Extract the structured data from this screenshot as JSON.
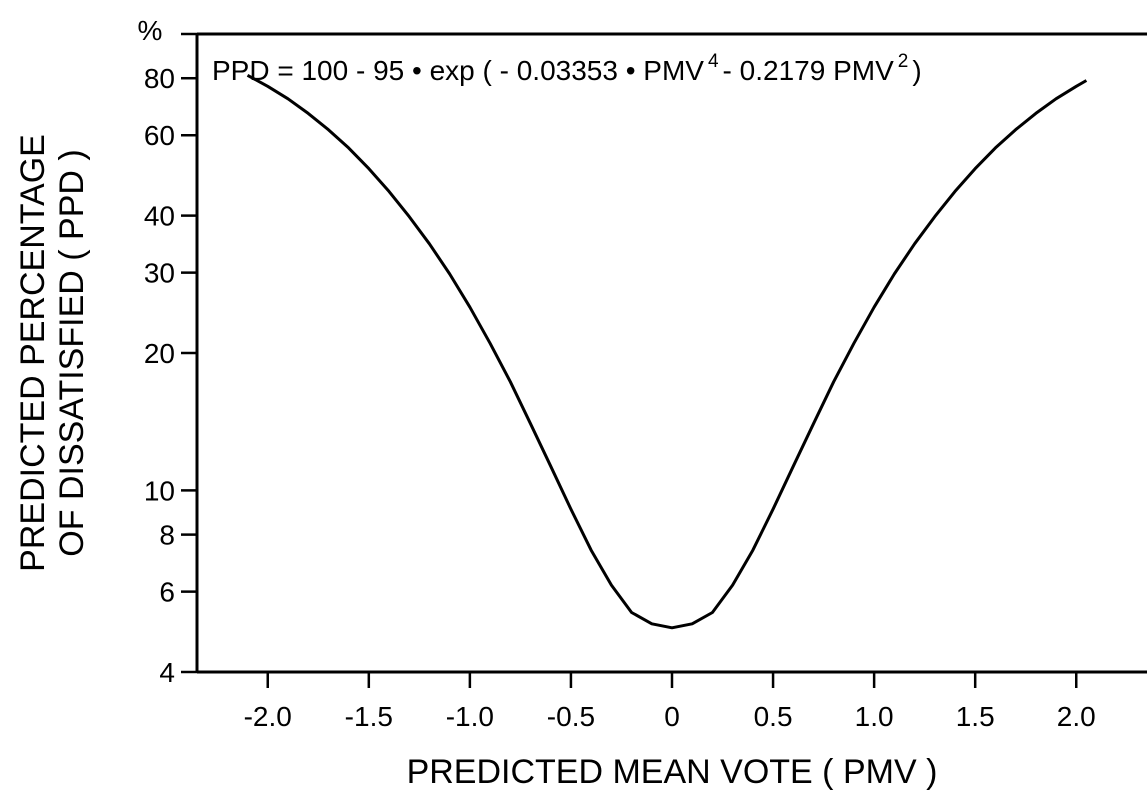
{
  "chart_data": {
    "type": "line",
    "title": "",
    "annotation": {
      "lead": "PPD = 100 - 95 • exp ( - 0.03353 • PMV",
      "exp1": "4",
      "mid": "- 0.2179 PMV",
      "exp2": "2",
      "tail": ")"
    },
    "xlabel": "PREDICTED  MEAN  VOTE  ( PMV )",
    "ylabel_line1": "PREDICTED  PERCENTAGE",
    "ylabel_line2": "OF  DISSATISFIED  ( PPD )",
    "y_unit": "%",
    "x_scale": "linear",
    "y_scale": "log",
    "xlim": [
      -2.35,
      2.35
    ],
    "ylim": [
      4,
      100
    ],
    "x_ticks": [
      {
        "value": -2.0,
        "label": "-2.0"
      },
      {
        "value": -1.5,
        "label": "-1.5"
      },
      {
        "value": -1.0,
        "label": "-1.0"
      },
      {
        "value": -0.5,
        "label": "-0.5"
      },
      {
        "value": 0,
        "label": "0"
      },
      {
        "value": 0.5,
        "label": "0.5"
      },
      {
        "value": 1.0,
        "label": "1.0"
      },
      {
        "value": 1.5,
        "label": "1.5"
      },
      {
        "value": 2.0,
        "label": "2.0"
      }
    ],
    "y_ticks": [
      {
        "value": 4,
        "label": "4"
      },
      {
        "value": 6,
        "label": "6"
      },
      {
        "value": 8,
        "label": "8"
      },
      {
        "value": 10,
        "label": "10"
      },
      {
        "value": 20,
        "label": "20"
      },
      {
        "value": 30,
        "label": "30"
      },
      {
        "value": 40,
        "label": "40"
      },
      {
        "value": 60,
        "label": "60"
      },
      {
        "value": 80,
        "label": "80"
      },
      {
        "value": 100,
        "label": ""
      }
    ],
    "grid": false,
    "series": [
      {
        "x": [
          -2.1,
          -2.0,
          -1.9,
          -1.8,
          -1.7,
          -1.6,
          -1.5,
          -1.4,
          -1.3,
          -1.2,
          -1.1,
          -1.0,
          -0.9,
          -0.8,
          -0.7,
          -0.6,
          -0.5,
          -0.4,
          -0.3,
          -0.2,
          -0.1,
          0,
          0.1,
          0.2,
          0.3,
          0.4,
          0.5,
          0.6,
          0.7,
          0.8,
          0.9,
          1.0,
          1.1,
          1.2,
          1.3,
          1.4,
          1.5,
          1.6,
          1.7,
          1.8,
          1.9,
          2.0,
          2.05
        ],
        "y": [
          81.2,
          76.8,
          72.1,
          67.0,
          61.7,
          56.3,
          50.7,
          45.2,
          39.8,
          34.7,
          29.8,
          25.2,
          21.0,
          17.3,
          14.0,
          11.3,
          9.1,
          7.4,
          6.2,
          5.4,
          5.1,
          5.0,
          5.1,
          5.4,
          6.2,
          7.4,
          9.1,
          11.3,
          14.0,
          17.3,
          21.0,
          25.2,
          29.8,
          34.7,
          39.8,
          45.2,
          50.7,
          56.3,
          61.7,
          67.0,
          72.1,
          76.8,
          79.1
        ]
      }
    ]
  }
}
